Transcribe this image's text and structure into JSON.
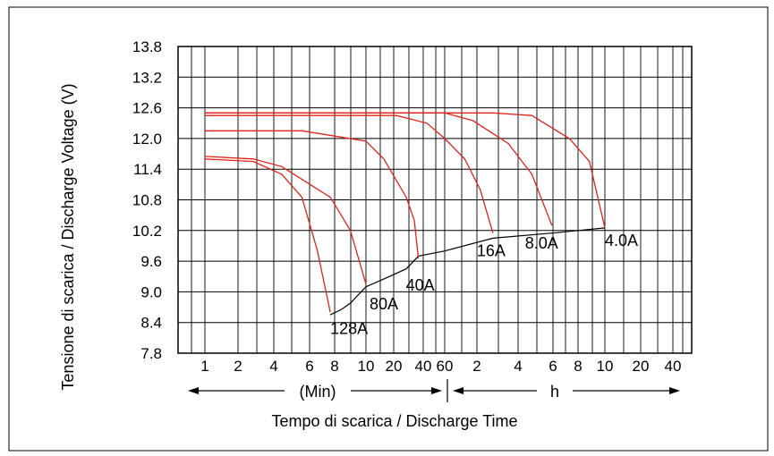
{
  "chart_data": {
    "type": "line",
    "xlabel": "Tempo di scarica / Discharge Time",
    "ylabel": "Tensione di scarica / Discharge Voltage (V)",
    "ylim": [
      7.8,
      13.8
    ],
    "y_ticks": [
      "13.8",
      "13.2",
      "12.6",
      "12.0",
      "11.4",
      "10.8",
      "10.2",
      "9.6",
      "9.0",
      "8.4",
      "7.8"
    ],
    "x_ticks": [
      "1",
      "2",
      "4",
      "6",
      "8",
      "10",
      "20",
      "40",
      "60",
      "2",
      "4",
      "6",
      "8",
      "10",
      "20",
      "40"
    ],
    "x_units": {
      "minutes_label": "(Min)",
      "hours_label": "h"
    },
    "grid": true,
    "series": [
      {
        "name": "128A",
        "color": "#e2231a",
        "points": [
          [
            1,
            11.6
          ],
          [
            2,
            11.55
          ],
          [
            3,
            11.3
          ],
          [
            4,
            10.85
          ],
          [
            5,
            9.8
          ],
          [
            6,
            8.6
          ]
        ]
      },
      {
        "name": "80A",
        "color": "#e2231a",
        "points": [
          [
            1,
            11.65
          ],
          [
            2,
            11.6
          ],
          [
            3,
            11.45
          ],
          [
            4,
            11.2
          ],
          [
            6,
            10.85
          ],
          [
            8,
            10.2
          ],
          [
            10,
            9.15
          ]
        ]
      },
      {
        "name": "40A",
        "color": "#e2231a",
        "points": [
          [
            1,
            12.15
          ],
          [
            4,
            12.15
          ],
          [
            10,
            11.95
          ],
          [
            15,
            11.6
          ],
          [
            25,
            10.85
          ],
          [
            30,
            10.4
          ],
          [
            33,
            9.65
          ]
        ]
      },
      {
        "name": "16A",
        "color": "#e2231a",
        "points": [
          [
            1,
            12.45
          ],
          [
            20,
            12.45
          ],
          [
            40,
            12.3
          ],
          [
            60,
            12.0
          ],
          [
            80,
            11.6
          ],
          [
            100,
            11.0
          ],
          [
            120,
            10.15
          ]
        ]
      },
      {
        "name": "8.0A",
        "color": "#e2231a",
        "points": [
          [
            1,
            12.5
          ],
          [
            60,
            12.5
          ],
          [
            90,
            12.35
          ],
          [
            150,
            11.9
          ],
          [
            210,
            11.3
          ],
          [
            280,
            10.3
          ]
        ]
      },
      {
        "name": "4.0A",
        "color": "#e2231a",
        "points": [
          [
            1,
            12.5
          ],
          [
            120,
            12.5
          ],
          [
            210,
            12.45
          ],
          [
            360,
            12.0
          ],
          [
            480,
            11.55
          ],
          [
            600,
            10.25
          ]
        ]
      }
    ],
    "cutoff_line": {
      "color": "#000000",
      "points": [
        [
          6,
          8.55
        ],
        [
          7,
          8.65
        ],
        [
          8,
          8.78
        ],
        [
          10,
          9.1
        ],
        [
          15,
          9.25
        ],
        [
          25,
          9.45
        ],
        [
          33,
          9.7
        ],
        [
          60,
          9.8
        ],
        [
          120,
          10.05
        ],
        [
          280,
          10.15
        ],
        [
          600,
          10.25
        ]
      ]
    }
  }
}
